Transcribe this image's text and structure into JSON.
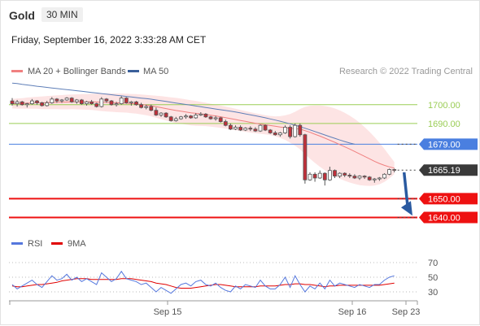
{
  "header": {
    "instrument": "Gold",
    "timeframe": "30 MIN",
    "datetime": "Friday, September 16, 2022 3:33:28 AM CET",
    "copyright": "Research © 2022 Trading Central"
  },
  "legend_main": [
    {
      "label": "MA 20 + Bollinger Bands",
      "color": "#f08080"
    },
    {
      "label": "MA 50",
      "color": "#3a5f9a"
    }
  ],
  "legend_rsi": [
    {
      "label": "RSI",
      "color": "#5577dd"
    },
    {
      "label": "9MA",
      "color": "#e00000"
    }
  ],
  "colors": {
    "bull_candle": "#ffffff",
    "bear_candle": "#c0303a",
    "candle_outline": "#555555",
    "green_level": "#9acd55",
    "blue_level": "#4a7fe0",
    "red_level": "#ee1111",
    "arrow": "#2a5aa0",
    "bollinger_fill": "#fde4e4",
    "current_price_tag": "#3a3a3a"
  },
  "chart_data": {
    "type": "candlestick",
    "price_range": [
      1632,
      1712
    ],
    "x_axis": {
      "tick_labels": [
        "Sep 15",
        "Sep 16",
        "Sep 23"
      ]
    },
    "levels": [
      {
        "label": "1700.00",
        "value": 1700,
        "style": "resistance-green"
      },
      {
        "label": "1690.00",
        "value": 1690,
        "style": "resistance-green"
      },
      {
        "label": "1679.00",
        "value": 1679,
        "style": "pivot-blue"
      },
      {
        "label": "1665.19",
        "value": 1665.19,
        "style": "current-price"
      },
      {
        "label": "1650.00",
        "value": 1650,
        "style": "support-red"
      },
      {
        "label": "1640.00",
        "value": 1640,
        "style": "support-red"
      }
    ],
    "candles": [
      [
        1702,
        1703.5,
        1699.5,
        1700.5
      ],
      [
        1700.5,
        1702.5,
        1699,
        1701.5
      ],
      [
        1701.5,
        1702,
        1699.5,
        1700
      ],
      [
        1700,
        1701,
        1698.5,
        1700.5
      ],
      [
        1700.5,
        1703,
        1700,
        1702
      ],
      [
        1702,
        1702.5,
        1700,
        1701
      ],
      [
        1701,
        1701.5,
        1699,
        1699.5
      ],
      [
        1699.5,
        1702,
        1699,
        1701
      ],
      [
        1701,
        1704,
        1700.5,
        1703
      ],
      [
        1703,
        1703.5,
        1701,
        1702
      ],
      [
        1702,
        1703,
        1701,
        1702.5
      ],
      [
        1702.5,
        1704,
        1702,
        1703.5
      ],
      [
        1703.5,
        1704,
        1701,
        1701.5
      ],
      [
        1701.5,
        1703,
        1700.5,
        1702.5
      ],
      [
        1702.5,
        1703,
        1700,
        1700.5
      ],
      [
        1700.5,
        1702,
        1699.5,
        1701.5
      ],
      [
        1701.5,
        1702.5,
        1700,
        1700.5
      ],
      [
        1700.5,
        1701,
        1698.5,
        1699
      ],
      [
        1699,
        1704,
        1698.5,
        1703
      ],
      [
        1703,
        1703.5,
        1701,
        1702
      ],
      [
        1702,
        1702.5,
        1699.5,
        1700
      ],
      [
        1700,
        1701.5,
        1699,
        1700.5
      ],
      [
        1700.5,
        1704.5,
        1700,
        1703.5
      ],
      [
        1703.5,
        1704,
        1700.5,
        1701
      ],
      [
        1701,
        1702,
        1699.5,
        1701.5
      ],
      [
        1701.5,
        1702,
        1699.5,
        1700
      ],
      [
        1700,
        1701,
        1698,
        1698.5
      ],
      [
        1698.5,
        1700,
        1697.5,
        1699
      ],
      [
        1699,
        1700,
        1696.5,
        1697
      ],
      [
        1697,
        1698.5,
        1694,
        1694.5
      ],
      [
        1694.5,
        1696,
        1693.5,
        1695.5
      ],
      [
        1695.5,
        1696,
        1693,
        1693.5
      ],
      [
        1693.5,
        1694,
        1691,
        1691.5
      ],
      [
        1691.5,
        1693.5,
        1691,
        1692.5
      ],
      [
        1692.5,
        1694,
        1692,
        1693.5
      ],
      [
        1693.5,
        1695,
        1692.5,
        1694
      ],
      [
        1694,
        1694.5,
        1692.5,
        1693
      ],
      [
        1693,
        1695.5,
        1692.5,
        1694.5
      ],
      [
        1694.5,
        1696,
        1694,
        1695
      ],
      [
        1695,
        1695.5,
        1693,
        1693.5
      ],
      [
        1693.5,
        1694,
        1692,
        1692.5
      ],
      [
        1692.5,
        1694,
        1691.5,
        1693
      ],
      [
        1693,
        1693.5,
        1690.5,
        1691
      ],
      [
        1691,
        1692,
        1688.5,
        1689
      ],
      [
        1689,
        1690,
        1686.5,
        1687
      ],
      [
        1687,
        1689,
        1686.5,
        1688
      ],
      [
        1688,
        1689,
        1686,
        1686.5
      ],
      [
        1686.5,
        1688,
        1686,
        1687.5
      ],
      [
        1687.5,
        1688.5,
        1686,
        1687
      ],
      [
        1687,
        1688,
        1685.5,
        1686
      ],
      [
        1686,
        1689.5,
        1685.5,
        1689
      ],
      [
        1689,
        1689.5,
        1686,
        1686.5
      ],
      [
        1686.5,
        1687,
        1684.5,
        1685
      ],
      [
        1685,
        1686,
        1683.5,
        1684
      ],
      [
        1684,
        1685.5,
        1683,
        1685
      ],
      [
        1685,
        1689,
        1684.5,
        1688
      ],
      [
        1688,
        1689,
        1682,
        1683
      ],
      [
        1683,
        1690,
        1682.5,
        1689
      ],
      [
        1689,
        1690,
        1683,
        1684
      ],
      [
        1684,
        1684.5,
        1658,
        1660
      ],
      [
        1660,
        1664,
        1659.5,
        1663
      ],
      [
        1663,
        1664,
        1659,
        1661
      ],
      [
        1661,
        1665,
        1660.5,
        1663.5
      ],
      [
        1663.5,
        1664,
        1657,
        1660
      ],
      [
        1660,
        1667,
        1659.5,
        1665
      ],
      [
        1665,
        1665.5,
        1661,
        1662
      ],
      [
        1662,
        1664,
        1661,
        1663.5
      ],
      [
        1663.5,
        1664,
        1661.5,
        1662.5
      ],
      [
        1662.5,
        1663.5,
        1661,
        1662
      ],
      [
        1662,
        1663,
        1660.5,
        1661
      ],
      [
        1661,
        1662.5,
        1660,
        1662
      ],
      [
        1662,
        1662.5,
        1660.5,
        1661.5
      ],
      [
        1661.5,
        1662,
        1659.5,
        1660
      ],
      [
        1660,
        1661,
        1658.5,
        1660.5
      ],
      [
        1660.5,
        1661.5,
        1659.5,
        1661
      ],
      [
        1661,
        1663.5,
        1660.5,
        1663
      ],
      [
        1663,
        1666,
        1662.5,
        1665.5
      ],
      [
        1665.5,
        1666,
        1664,
        1665.19
      ]
    ],
    "ma20": [
      1700.5,
      1700.6,
      1700.7,
      1700.8,
      1700.9,
      1701,
      1701,
      1701.1,
      1701.2,
      1701.3,
      1701.3,
      1701.4,
      1701.5,
      1701.5,
      1701.5,
      1701.5,
      1701.5,
      1701.4,
      1701.3,
      1701.2,
      1701.1,
      1701,
      1700.9,
      1700.8,
      1700.6,
      1700.4,
      1700.1,
      1699.8,
      1699.4,
      1698.9,
      1698.4,
      1697.9,
      1697.4,
      1696.9,
      1696.5,
      1696.1,
      1695.7,
      1695.4,
      1695.1,
      1694.8,
      1694.4,
      1694,
      1693.6,
      1693.1,
      1692.6,
      1692.1,
      1691.6,
      1691.1,
      1690.6,
      1690.1,
      1689.7,
      1689.3,
      1688.9,
      1688.5,
      1688.1,
      1687.8,
      1687.4,
      1687.2,
      1687,
      1686.2,
      1685.3,
      1684.3,
      1683.3,
      1682.2,
      1681.1,
      1680,
      1678.8,
      1677.6,
      1676.4,
      1675.1,
      1673.8,
      1672.5,
      1671.2,
      1669.9,
      1668.7,
      1667.7,
      1666.9,
      1666.3
    ],
    "ma50": [
      1711.5,
      1711.2,
      1710.8,
      1710.5,
      1710.2,
      1709.8,
      1709.5,
      1709.2,
      1708.9,
      1708.6,
      1708.3,
      1708,
      1707.7,
      1707.4,
      1707.1,
      1706.8,
      1706.5,
      1706.2,
      1705.9,
      1705.6,
      1705.3,
      1705,
      1704.7,
      1704.4,
      1704.1,
      1703.8,
      1703.5,
      1703.2,
      1702.9,
      1702.5,
      1702.1,
      1701.7,
      1701.3,
      1700.9,
      1700.5,
      1700.1,
      1699.7,
      1699.3,
      1698.9,
      1698.5,
      1698.1,
      1697.7,
      1697.3,
      1696.9,
      1696.5,
      1696.1,
      1695.6,
      1695.1,
      1694.6,
      1694.1,
      1693.6,
      1693,
      1692.4,
      1691.8,
      1691.2,
      1690.5,
      1689.8,
      1689.1,
      1688.3,
      1687.5,
      1686.6,
      1685.7,
      1684.8,
      1683.9,
      1683,
      1682.1,
      1681.2,
      1680.4,
      1679.6,
      1679
    ],
    "bollinger": {
      "upper": [
        1703,
        1703.3,
        1703.5,
        1703.8,
        1704,
        1704.2,
        1704.4,
        1704.6,
        1704.8,
        1705,
        1705.1,
        1705.3,
        1705.4,
        1705.5,
        1705.6,
        1705.7,
        1705.8,
        1705.9,
        1706,
        1706,
        1706,
        1706,
        1705.9,
        1705.8,
        1705.7,
        1705.6,
        1705.4,
        1705.2,
        1705,
        1704.8,
        1704.5,
        1704.2,
        1703.9,
        1703.6,
        1703.2,
        1702.8,
        1702.4,
        1702,
        1701.5,
        1701,
        1700.5,
        1700,
        1699.5,
        1699,
        1698.4,
        1697.8,
        1697.2,
        1696.6,
        1696,
        1695.4,
        1694.9,
        1694.4,
        1694,
        1693.8,
        1693.9,
        1694.3,
        1695,
        1696.2,
        1697.7,
        1698.8,
        1699.4,
        1699.6,
        1699.6,
        1699.3,
        1698.8,
        1698,
        1697,
        1695.7,
        1694.2,
        1692.4,
        1690.4,
        1688.1,
        1685.6,
        1682.8,
        1679.8,
        1676.5,
        1673,
        1669.5
      ],
      "lower": [
        1698,
        1697.9,
        1697.9,
        1697.8,
        1697.8,
        1697.8,
        1697.6,
        1697.6,
        1697.6,
        1697.6,
        1697.5,
        1697.5,
        1697.6,
        1697.5,
        1697.4,
        1697.3,
        1697.2,
        1696.9,
        1696.6,
        1696.4,
        1696.2,
        1696,
        1695.9,
        1695.8,
        1695.5,
        1695.2,
        1694.8,
        1694.4,
        1693.8,
        1693,
        1692.3,
        1691.6,
        1690.9,
        1690.2,
        1689.8,
        1689.4,
        1689,
        1688.8,
        1688.7,
        1688.6,
        1688.3,
        1688,
        1687.7,
        1687.2,
        1686.8,
        1686.4,
        1686,
        1685.6,
        1685.2,
        1684.8,
        1684.5,
        1684.2,
        1683.8,
        1683.2,
        1682.3,
        1681.3,
        1679.8,
        1678.2,
        1676.3,
        1673.6,
        1671.2,
        1669,
        1667,
        1665.1,
        1663.4,
        1662,
        1660.6,
        1659.5,
        1658.6,
        1657.8,
        1657.2,
        1656.9,
        1656.8,
        1657,
        1657.6,
        1658.9,
        1660.8,
        1663.1
      ]
    },
    "rsi": {
      "y_ticks": [
        70,
        50,
        30
      ],
      "rsi": [
        40,
        34,
        38,
        42,
        46,
        40,
        36,
        44,
        52,
        46,
        48,
        54,
        46,
        50,
        44,
        48,
        44,
        40,
        56,
        50,
        44,
        48,
        58,
        48,
        46,
        44,
        40,
        42,
        36,
        30,
        36,
        32,
        28,
        34,
        40,
        42,
        38,
        44,
        46,
        40,
        38,
        42,
        36,
        32,
        30,
        38,
        34,
        40,
        38,
        36,
        46,
        38,
        34,
        34,
        40,
        50,
        36,
        52,
        40,
        30,
        38,
        34,
        42,
        34,
        46,
        38,
        42,
        40,
        38,
        36,
        40,
        38,
        36,
        40,
        40,
        46,
        50,
        52
      ],
      "ma9": [
        38,
        37,
        37,
        38,
        39,
        40,
        40,
        41,
        42,
        43,
        45,
        46,
        47,
        48,
        48,
        48,
        47,
        47,
        47,
        47,
        47,
        47,
        48,
        48,
        48,
        47,
        46,
        45,
        44,
        42,
        41,
        40,
        38,
        36,
        35,
        35,
        35,
        36,
        37,
        38,
        39,
        40,
        40,
        39,
        38,
        37,
        37,
        37,
        37,
        37,
        38,
        38,
        38,
        38,
        39,
        40,
        40,
        41,
        41,
        40,
        40,
        39,
        38,
        37,
        38,
        38,
        39,
        39,
        39,
        39,
        39,
        39,
        39,
        39,
        39,
        40,
        41,
        42
      ]
    }
  }
}
